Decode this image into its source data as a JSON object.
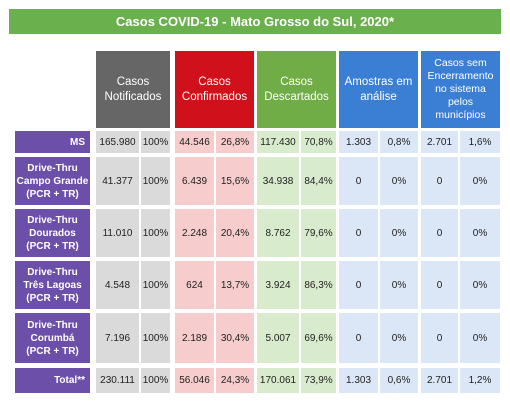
{
  "title": "Casos COVID-19 - Mato Grosso do Sul, 2020*",
  "headers": [
    "Casos\nNotificados",
    "Casos\nConfirmados",
    "Casos\nDescartados",
    "Amostras em\nanálise",
    "Casos sem\nEncerramento\nno sistema\npelos\nmunicípios"
  ],
  "rows": [
    {
      "label": "MS",
      "cells": [
        "165.980",
        "100%",
        "44.546",
        "26,8%",
        "117.430",
        "70,8%",
        "1.303",
        "0,8%",
        "2.701",
        "1,6%"
      ]
    },
    {
      "label": "Drive-Thru\nCampo Grande\n(PCR + TR)",
      "cells": [
        "41.377",
        "100%",
        "6.439",
        "15,6%",
        "34.938",
        "84,4%",
        "0",
        "0%",
        "0",
        "0%"
      ]
    },
    {
      "label": "Drive-Thru\nDourados\n(PCR + TR)",
      "cells": [
        "11.010",
        "100%",
        "2.248",
        "20,4%",
        "8.762",
        "79,6%",
        "0",
        "0%",
        "0",
        "0%"
      ]
    },
    {
      "label": "Drive-Thru\nTrês Lagoas\n(PCR + TR)",
      "cells": [
        "4.548",
        "100%",
        "624",
        "13,7%",
        "3.924",
        "86,3%",
        "0",
        "0%",
        "0",
        "0%"
      ]
    },
    {
      "label": "Drive-Thru\nCorumbá\n(PCR + TR)",
      "cells": [
        "7.196",
        "100%",
        "2.189",
        "30,4%",
        "5.007",
        "69,6%",
        "0",
        "0%",
        "0",
        "0%"
      ]
    },
    {
      "label": "Total**",
      "cells": [
        "230.111",
        "100%",
        "56.046",
        "24,3%",
        "170.061",
        "73,9%",
        "1.303",
        "0,6%",
        "2.701",
        "1,2%"
      ]
    }
  ]
}
